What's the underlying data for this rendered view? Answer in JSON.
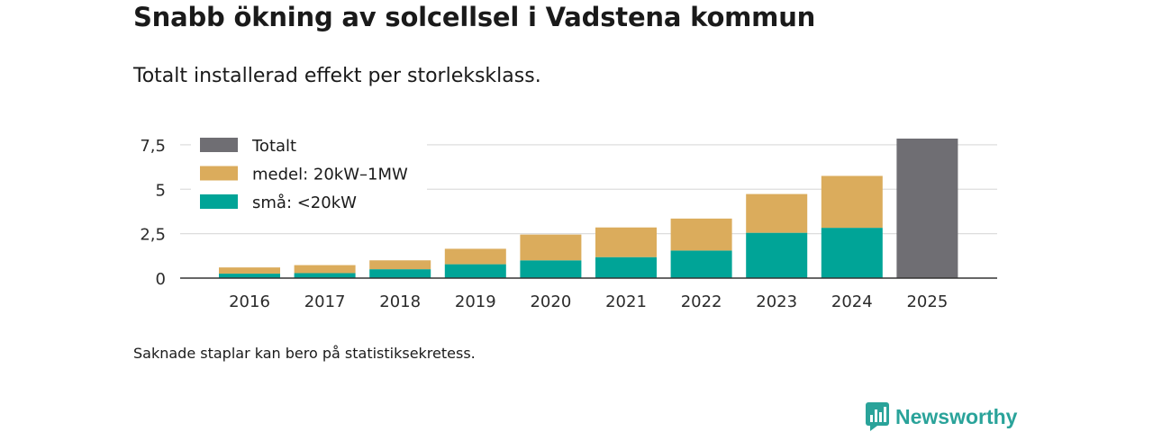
{
  "title": "Snabb ökning av solcellsel i Vadstena kommun",
  "subtitle": "Totalt installerad effekt per storleksklass.",
  "footnote": "Saknade staplar kan bero på statistiksekretess.",
  "brand": {
    "name": "Newsworthy",
    "color": "#2aa39a"
  },
  "chart_data": {
    "type": "bar",
    "stacked": true,
    "categories": [
      "2016",
      "2017",
      "2018",
      "2019",
      "2020",
      "2021",
      "2022",
      "2023",
      "2024",
      "2025"
    ],
    "series": [
      {
        "name": "små: <20kW",
        "color": "#00a497",
        "values": [
          0.25,
          0.28,
          0.5,
          0.78,
          1.0,
          1.18,
          1.55,
          2.55,
          2.83,
          null
        ]
      },
      {
        "name": "medel: 20kW–1MW",
        "color": "#dbac5c",
        "values": [
          0.35,
          0.45,
          0.5,
          0.87,
          1.45,
          1.67,
          1.8,
          2.18,
          2.92,
          null
        ]
      },
      {
        "name": "Totalt",
        "color": "#6f6e73",
        "values": [
          null,
          null,
          null,
          null,
          null,
          null,
          null,
          null,
          null,
          7.85
        ]
      }
    ],
    "legend": [
      "Totalt",
      "medel: 20kW–1MW",
      "små: <20kW"
    ],
    "y_ticks": [
      {
        "value": 0,
        "label": "0"
      },
      {
        "value": 2.5,
        "label": "2,5"
      },
      {
        "value": 5,
        "label": "5"
      },
      {
        "value": 7.5,
        "label": "7,5"
      }
    ],
    "ylim": [
      0,
      7.9
    ],
    "grid": true,
    "legend_position": "top-left"
  }
}
